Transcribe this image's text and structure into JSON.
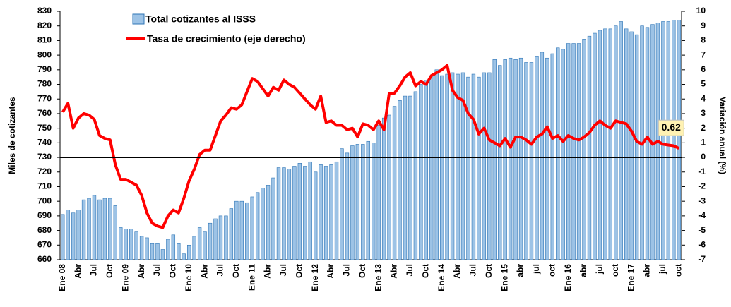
{
  "chart_data": {
    "type": "bar_line",
    "y_label": "Miles de cotizantes",
    "y2_label": "Variación anual (%)",
    "categories": [
      "Ene 08",
      null,
      null,
      "Abr",
      null,
      null,
      "Jul",
      null,
      null,
      "Oct",
      null,
      null,
      "Ene 09",
      null,
      null,
      "Abr",
      null,
      null,
      "Jul",
      null,
      null,
      "Oct",
      null,
      null,
      "Ene 10",
      null,
      null,
      "Abr",
      null,
      null,
      "Jul",
      null,
      null,
      "Oct",
      null,
      null,
      "Ene 11",
      null,
      null,
      "Abr",
      null,
      null,
      "Jul",
      null,
      null,
      "Oct",
      null,
      null,
      "Ene 12",
      null,
      null,
      "Abr",
      null,
      null,
      "Jul",
      null,
      null,
      "Oct",
      null,
      null,
      "Ene 13",
      null,
      null,
      "Abr",
      null,
      null,
      "Jul",
      null,
      null,
      "Oct",
      null,
      null,
      "Ene 14",
      null,
      null,
      "Abr",
      null,
      null,
      "Jul",
      null,
      null,
      "Oct",
      null,
      null,
      "Ene 15",
      null,
      null,
      "abr",
      null,
      null,
      "jul",
      null,
      null,
      "oct",
      null,
      null,
      "Ene 16",
      null,
      null,
      "abr",
      null,
      null,
      "jul",
      null,
      null,
      "oct",
      null,
      null,
      "Ene 17",
      null,
      null,
      "abr",
      null,
      null,
      "jul",
      null,
      null,
      "oct"
    ],
    "series": [
      {
        "name": "Total cotizantes al ISSS",
        "type": "bar",
        "color": "#9dc3e6",
        "values": [
          691,
          694,
          692,
          694,
          701,
          702,
          704,
          701,
          702,
          702,
          697,
          682,
          681,
          681,
          679,
          676,
          675,
          671,
          671,
          667,
          674,
          677,
          671,
          664,
          670,
          676,
          682,
          679,
          685,
          688,
          690,
          690,
          695,
          700,
          700,
          699,
          703,
          706,
          709,
          711,
          716,
          723,
          723,
          722,
          724,
          726,
          724,
          727,
          720,
          725,
          724,
          725,
          727,
          736,
          733,
          738,
          739,
          739,
          741,
          740,
          752,
          757,
          759,
          765,
          769,
          772,
          772,
          775,
          780,
          783,
          786,
          790,
          786,
          787,
          788,
          787,
          788,
          785,
          787,
          785,
          788,
          788,
          797,
          793,
          797,
          798,
          797,
          798,
          795,
          795,
          799,
          802,
          798,
          801,
          805,
          804,
          808,
          808,
          808,
          811,
          813,
          815,
          817,
          818,
          818,
          820,
          823,
          818,
          816,
          814,
          820,
          819,
          821,
          822,
          823,
          823,
          824,
          824
        ]
      },
      {
        "name": "Tasa de crecimiento (eje derecho)",
        "type": "line",
        "axis": "y2",
        "color": "#ff0000",
        "values": [
          3.1,
          3.7,
          2.0,
          2.7,
          3.0,
          2.9,
          2.6,
          1.5,
          1.3,
          1.2,
          -0.5,
          -1.5,
          -1.5,
          -1.7,
          -1.9,
          -2.6,
          -3.8,
          -4.5,
          -4.7,
          -4.8,
          -4.0,
          -3.6,
          -3.8,
          -2.8,
          -1.6,
          -0.8,
          0.2,
          0.5,
          0.5,
          1.5,
          2.5,
          2.9,
          3.4,
          3.3,
          3.6,
          4.5,
          5.4,
          5.2,
          4.7,
          4.2,
          4.8,
          4.6,
          5.3,
          5.0,
          4.8,
          4.4,
          4.0,
          3.6,
          3.3,
          4.2,
          2.4,
          2.5,
          2.2,
          2.2,
          1.9,
          2.0,
          1.4,
          2.3,
          2.2,
          1.9,
          2.5,
          1.9,
          4.4,
          4.4,
          4.9,
          5.5,
          5.8,
          4.9,
          5.2,
          5.0,
          5.6,
          5.8,
          6.0,
          6.3,
          4.6,
          4.1,
          3.9,
          3.0,
          2.6,
          1.6,
          2.0,
          1.2,
          1.0,
          0.8,
          1.3,
          0.7,
          1.4,
          1.4,
          1.2,
          0.9,
          1.4,
          1.6,
          2.1,
          1.3,
          1.5,
          1.1,
          1.5,
          1.3,
          1.2,
          1.4,
          1.7,
          2.2,
          2.5,
          2.2,
          2.0,
          2.5,
          2.4,
          2.3,
          1.8,
          1.1,
          0.9,
          1.4,
          0.9,
          1.1,
          0.9,
          0.85,
          0.8,
          0.62
        ]
      }
    ],
    "ylim": [
      660,
      830
    ],
    "yticks": [
      660,
      670,
      680,
      690,
      700,
      710,
      720,
      730,
      740,
      750,
      760,
      770,
      780,
      790,
      800,
      810,
      820,
      830
    ],
    "y2lim": [
      -7,
      10
    ],
    "y2ticks": [
      -7,
      -6,
      -5,
      -4,
      -3,
      -2,
      -1,
      0,
      1,
      2,
      3,
      4,
      5,
      6,
      7,
      8,
      9,
      10
    ]
  }
}
